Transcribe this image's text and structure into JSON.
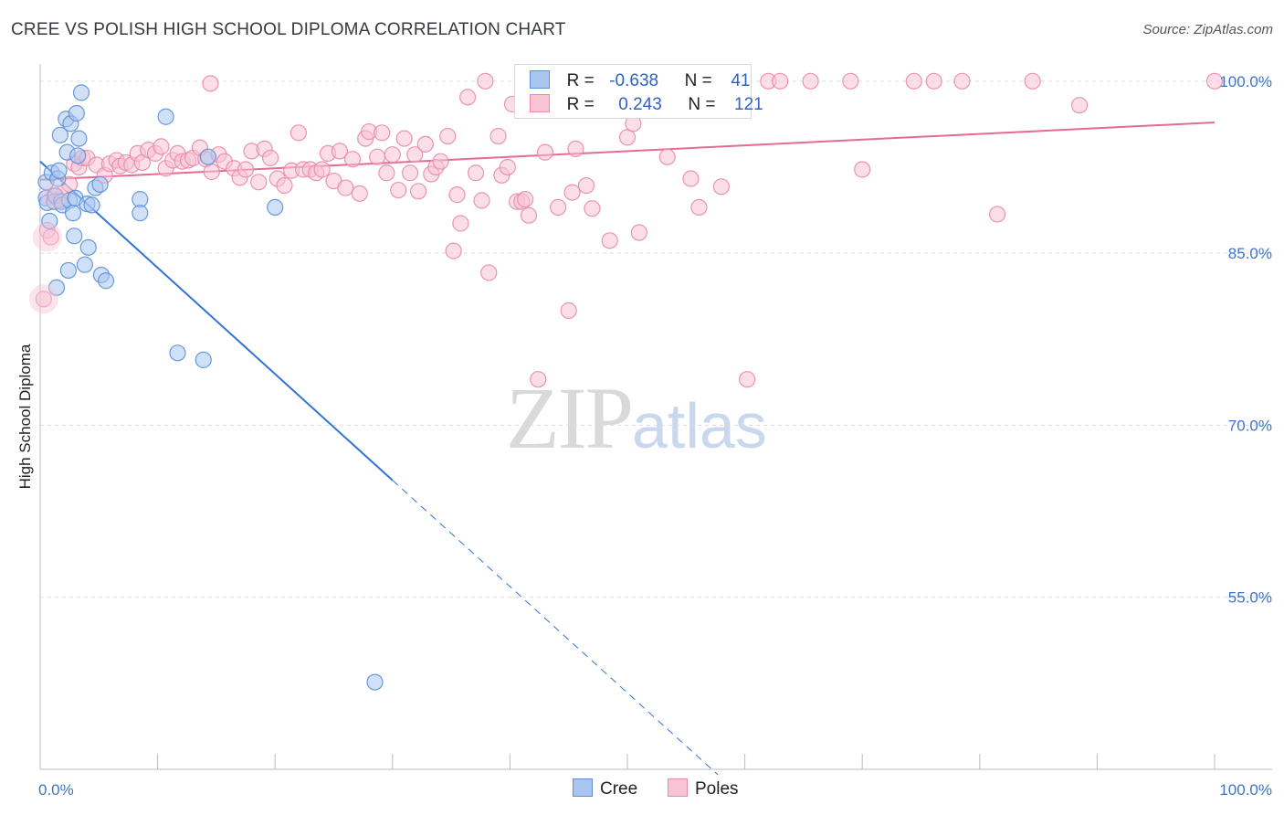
{
  "title": "CREE VS POLISH HIGH SCHOOL DIPLOMA CORRELATION CHART",
  "source": "Source: ZipAtlas.com",
  "watermark": {
    "zip": "ZIP",
    "atlas": "atlas"
  },
  "colors": {
    "cree_fill": "#a9c6f0",
    "cree_stroke": "#5b8fd8",
    "cree_line": "#2f73d6",
    "poles_fill": "#f7c3d5",
    "poles_stroke": "#e98aaa",
    "poles_line": "#e36b96",
    "tick_text": "#3d74c6",
    "grid": "#dddddd"
  },
  "stats": {
    "row1": {
      "r_label": "R =",
      "r_value": "-0.638",
      "n_label": "N =",
      "n_value": "41"
    },
    "row2": {
      "r_label": "R =",
      "r_value": "0.243",
      "n_label": "N =",
      "n_value": "121"
    }
  },
  "legend": {
    "cree": "Cree",
    "poles": "Poles"
  },
  "chart_data": {
    "type": "scatter",
    "title": "CREE VS POLISH HIGH SCHOOL DIPLOMA CORRELATION CHART",
    "xlabel": "",
    "ylabel": "High School Diploma",
    "xlim": [
      0,
      100
    ],
    "ylim": [
      40,
      101.5
    ],
    "x_tick_labels": [
      "0.0%",
      "100.0%"
    ],
    "y_ticks": [
      100,
      85,
      70,
      55
    ],
    "y_tick_labels": [
      "100.0%",
      "85.0%",
      "70.0%",
      "55.0%"
    ],
    "grid": true,
    "legend_position": "bottom",
    "series": [
      {
        "name": "Cree",
        "r": -0.638,
        "n": 41,
        "trend": {
          "x0": 0,
          "y0": 93.0,
          "x1": 30,
          "y1": 65.2,
          "dashed_to_x": 57.7
        },
        "points": [
          [
            0.5,
            91.2
          ],
          [
            0.5,
            89.8
          ],
          [
            0.6,
            89.4
          ],
          [
            0.8,
            87.8
          ],
          [
            1.0,
            92.0
          ],
          [
            1.2,
            89.5
          ],
          [
            1.3,
            90.0
          ],
          [
            1.4,
            82.0
          ],
          [
            1.5,
            91.5
          ],
          [
            1.6,
            92.2
          ],
          [
            1.7,
            95.3
          ],
          [
            1.8,
            89.5
          ],
          [
            1.9,
            89.2
          ],
          [
            2.2,
            96.7
          ],
          [
            2.3,
            93.8
          ],
          [
            2.4,
            83.5
          ],
          [
            2.5,
            89.6
          ],
          [
            2.6,
            96.3
          ],
          [
            2.8,
            88.5
          ],
          [
            2.9,
            86.5
          ],
          [
            3.0,
            89.8
          ],
          [
            3.1,
            97.2
          ],
          [
            3.2,
            93.5
          ],
          [
            3.3,
            95.0
          ],
          [
            3.5,
            99.0
          ],
          [
            3.8,
            84.0
          ],
          [
            4.0,
            89.3
          ],
          [
            4.1,
            85.5
          ],
          [
            4.4,
            89.2
          ],
          [
            4.7,
            90.7
          ],
          [
            5.1,
            91.0
          ],
          [
            5.2,
            83.1
          ],
          [
            5.6,
            82.6
          ],
          [
            8.5,
            89.7
          ],
          [
            8.5,
            88.5
          ],
          [
            10.7,
            96.9
          ],
          [
            11.7,
            76.3
          ],
          [
            13.9,
            75.7
          ],
          [
            14.3,
            93.4
          ],
          [
            20.0,
            89.0
          ],
          [
            28.5,
            47.6
          ]
        ]
      },
      {
        "name": "Poles",
        "r": 0.243,
        "n": 121,
        "trend": {
          "x0": 0,
          "y0": 91.4,
          "x1": 100,
          "y1": 96.4
        },
        "points": [
          [
            0.3,
            81.0
          ],
          [
            0.6,
            87.0
          ],
          [
            0.9,
            86.4
          ],
          [
            1.2,
            90.0
          ],
          [
            1.6,
            89.6
          ],
          [
            2.0,
            90.3
          ],
          [
            2.5,
            91.0
          ],
          [
            2.9,
            92.8
          ],
          [
            3.3,
            92.5
          ],
          [
            3.6,
            93.3
          ],
          [
            4.0,
            93.3
          ],
          [
            4.8,
            92.7
          ],
          [
            5.5,
            91.8
          ],
          [
            5.9,
            92.8
          ],
          [
            6.5,
            93.1
          ],
          [
            6.8,
            92.6
          ],
          [
            7.3,
            92.9
          ],
          [
            7.8,
            92.7
          ],
          [
            8.3,
            93.7
          ],
          [
            8.7,
            92.9
          ],
          [
            9.2,
            94.0
          ],
          [
            9.8,
            93.7
          ],
          [
            10.3,
            94.3
          ],
          [
            10.7,
            92.4
          ],
          [
            11.3,
            93.1
          ],
          [
            11.7,
            93.7
          ],
          [
            12.1,
            93.0
          ],
          [
            12.6,
            93.1
          ],
          [
            13.0,
            93.3
          ],
          [
            13.6,
            94.2
          ],
          [
            14.1,
            93.2
          ],
          [
            14.6,
            92.1
          ],
          [
            15.2,
            93.6
          ],
          [
            15.7,
            93.0
          ],
          [
            16.5,
            92.4
          ],
          [
            17.0,
            91.6
          ],
          [
            17.5,
            92.3
          ],
          [
            18.0,
            93.9
          ],
          [
            18.6,
            91.2
          ],
          [
            19.1,
            94.1
          ],
          [
            19.6,
            93.3
          ],
          [
            20.2,
            91.5
          ],
          [
            20.8,
            90.9
          ],
          [
            21.4,
            92.2
          ],
          [
            22.0,
            95.5
          ],
          [
            22.4,
            92.3
          ],
          [
            23.0,
            92.3
          ],
          [
            23.5,
            92.0
          ],
          [
            24.0,
            92.3
          ],
          [
            24.5,
            93.7
          ],
          [
            25.0,
            91.3
          ],
          [
            25.5,
            93.9
          ],
          [
            26.0,
            90.7
          ],
          [
            26.6,
            93.2
          ],
          [
            27.2,
            90.2
          ],
          [
            27.7,
            95.0
          ],
          [
            28.0,
            95.6
          ],
          [
            28.7,
            93.4
          ],
          [
            29.1,
            95.5
          ],
          [
            29.5,
            92.0
          ],
          [
            30.0,
            93.6
          ],
          [
            30.5,
            90.5
          ],
          [
            31.0,
            95.0
          ],
          [
            31.5,
            92.0
          ],
          [
            31.9,
            93.6
          ],
          [
            32.2,
            90.4
          ],
          [
            32.8,
            94.5
          ],
          [
            33.3,
            91.9
          ],
          [
            33.7,
            92.5
          ],
          [
            34.1,
            93.0
          ],
          [
            34.7,
            95.2
          ],
          [
            35.2,
            85.2
          ],
          [
            35.5,
            90.1
          ],
          [
            35.8,
            87.6
          ],
          [
            36.4,
            98.6
          ],
          [
            37.1,
            92.0
          ],
          [
            37.6,
            89.6
          ],
          [
            38.2,
            83.3
          ],
          [
            39.0,
            95.2
          ],
          [
            39.3,
            91.8
          ],
          [
            39.8,
            92.5
          ],
          [
            40.2,
            98.0
          ],
          [
            40.6,
            89.5
          ],
          [
            41.0,
            89.5
          ],
          [
            41.3,
            89.7
          ],
          [
            41.6,
            88.3
          ],
          [
            42.4,
            74.0
          ],
          [
            43.0,
            93.8
          ],
          [
            44.1,
            89.0
          ],
          [
            45.0,
            80.0
          ],
          [
            45.3,
            90.3
          ],
          [
            45.6,
            94.1
          ],
          [
            46.5,
            90.9
          ],
          [
            47.0,
            88.9
          ],
          [
            48.5,
            86.1
          ],
          [
            50.0,
            95.1
          ],
          [
            50.5,
            96.3
          ],
          [
            51.0,
            86.8
          ],
          [
            53.4,
            93.4
          ],
          [
            55.4,
            91.5
          ],
          [
            56.1,
            89.0
          ],
          [
            58.0,
            90.8
          ],
          [
            60.2,
            74.0
          ],
          [
            62.0,
            100.0
          ],
          [
            63.0,
            100.0
          ],
          [
            65.6,
            100.0
          ],
          [
            69.0,
            100.0
          ],
          [
            70.0,
            92.3
          ],
          [
            74.4,
            100.0
          ],
          [
            76.1,
            100.0
          ],
          [
            78.5,
            100.0
          ],
          [
            81.5,
            88.4
          ],
          [
            84.5,
            100.0
          ],
          [
            88.5,
            97.9
          ],
          [
            100.0,
            100.0
          ],
          [
            37.9,
            100.0
          ],
          [
            42.7,
            100.0
          ],
          [
            50.9,
            100.0
          ],
          [
            54.5,
            100.0
          ],
          [
            56.6,
            100.0
          ],
          [
            14.5,
            99.8
          ]
        ]
      }
    ]
  }
}
